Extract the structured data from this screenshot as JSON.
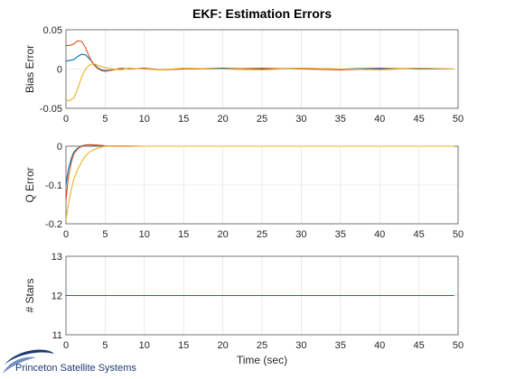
{
  "chart_data": [
    {
      "type": "line",
      "title": "EKF: Estimation Errors",
      "xlabel": "",
      "ylabel": "Bias Error",
      "xlim": [
        0,
        50
      ],
      "ylim": [
        -0.05,
        0.05
      ],
      "xticks": [
        "0",
        "5",
        "10",
        "15",
        "20",
        "25",
        "30",
        "35",
        "40",
        "45",
        "50"
      ],
      "yticks": [
        "-0.05",
        "0",
        "0.05"
      ],
      "grid": true,
      "series": [
        {
          "color": "#0072bd",
          "x": [
            0,
            0.5,
            1,
            1.5,
            2,
            2.5,
            3,
            3.5,
            4,
            4.5,
            5,
            6,
            7,
            8,
            10,
            12,
            15,
            20,
            25,
            30,
            35,
            40,
            45,
            49.5
          ],
          "y": [
            0.01,
            0.011,
            0.012,
            0.016,
            0.019,
            0.018,
            0.013,
            0.007,
            0.002,
            -0.001,
            -0.002,
            -0.001,
            0.001,
            0.0,
            0.001,
            -0.001,
            0.0,
            0.001,
            0.0,
            0.001,
            0.0,
            0.001,
            0.0,
            0.0
          ]
        },
        {
          "color": "#d95319",
          "x": [
            0,
            0.5,
            1,
            1.5,
            2,
            2.5,
            3,
            3.5,
            4,
            4.5,
            5,
            6,
            7,
            8,
            10,
            12,
            15,
            20,
            25,
            30,
            35,
            40,
            45,
            49.5
          ],
          "y": [
            0.03,
            0.03,
            0.032,
            0.036,
            0.035,
            0.027,
            0.015,
            0.006,
            0.001,
            -0.002,
            -0.003,
            -0.001,
            0.001,
            0.0,
            0.001,
            -0.001,
            0.0,
            0.0,
            0.001,
            0.0,
            -0.001,
            0.0,
            0.001,
            0.0
          ]
        },
        {
          "color": "#edb120",
          "x": [
            0,
            0.5,
            1,
            1.5,
            2,
            2.5,
            3,
            3.5,
            4,
            4.5,
            5,
            6,
            7,
            8,
            10,
            12,
            15,
            20,
            25,
            30,
            35,
            40,
            45,
            49.5
          ],
          "y": [
            -0.04,
            -0.04,
            -0.037,
            -0.025,
            -0.01,
            0.0,
            0.005,
            0.007,
            0.005,
            0.003,
            0.002,
            0.0,
            -0.001,
            0.001,
            0.0,
            -0.001,
            0.001,
            0.0,
            -0.001,
            0.001,
            0.0,
            -0.001,
            0.001,
            0.0
          ]
        }
      ]
    },
    {
      "type": "line",
      "title": "",
      "xlabel": "",
      "ylabel": "Q Error",
      "xlim": [
        0,
        50
      ],
      "ylim": [
        -0.2,
        0.0
      ],
      "xticks": [
        "0",
        "5",
        "10",
        "15",
        "20",
        "25",
        "30",
        "35",
        "40",
        "45",
        "50"
      ],
      "yticks": [
        "-0.2",
        "-0.1",
        "0"
      ],
      "grid": true,
      "series": [
        {
          "color": "#0072bd",
          "x": [
            0,
            0.3,
            0.7,
            1,
            1.5,
            2,
            2.5,
            3,
            4,
            5,
            6,
            8,
            10,
            15,
            20,
            30,
            40,
            49.5
          ],
          "y": [
            -0.1,
            -0.06,
            -0.03,
            -0.015,
            -0.005,
            0.001,
            0.003,
            0.003,
            0.002,
            0.001,
            0.0,
            0.0,
            0.0,
            0.0,
            0.0,
            0.0,
            0.0,
            0.0
          ]
        },
        {
          "color": "#d95319",
          "x": [
            0,
            0.3,
            0.7,
            1,
            1.5,
            2,
            2.5,
            3,
            4,
            5,
            6,
            8,
            10,
            15,
            20,
            30,
            40,
            49.5
          ],
          "y": [
            -0.14,
            -0.08,
            -0.04,
            -0.02,
            -0.007,
            0.0,
            0.003,
            0.004,
            0.003,
            0.001,
            0.0,
            0.0,
            0.0,
            0.0,
            0.0,
            0.0,
            0.0,
            0.0
          ]
        },
        {
          "color": "#edb120",
          "x": [
            0,
            0.3,
            0.7,
            1,
            1.5,
            2,
            2.5,
            3,
            4,
            5,
            6,
            8,
            10,
            15,
            20,
            30,
            40,
            49.5
          ],
          "y": [
            -0.19,
            -0.15,
            -0.11,
            -0.085,
            -0.06,
            -0.04,
            -0.025,
            -0.015,
            -0.005,
            0.0,
            0.001,
            0.001,
            0.0,
            0.0,
            0.0,
            0.0,
            0.0,
            0.0
          ]
        }
      ]
    },
    {
      "type": "line",
      "title": "",
      "xlabel": "Time (sec)",
      "ylabel": "# Stars",
      "xlim": [
        0,
        50
      ],
      "ylim": [
        11,
        13
      ],
      "xticks": [
        "0",
        "5",
        "10",
        "15",
        "20",
        "25",
        "30",
        "35",
        "40",
        "45",
        "50"
      ],
      "yticks": [
        "11",
        "12",
        "13"
      ],
      "grid": true,
      "series": [
        {
          "color": "#0072bd",
          "x": [
            0,
            49.5
          ],
          "y": [
            12,
            12
          ]
        }
      ]
    }
  ],
  "footer": {
    "logo_text": "Princeton Satellite Systems",
    "logo_color": "#1f3a73"
  }
}
